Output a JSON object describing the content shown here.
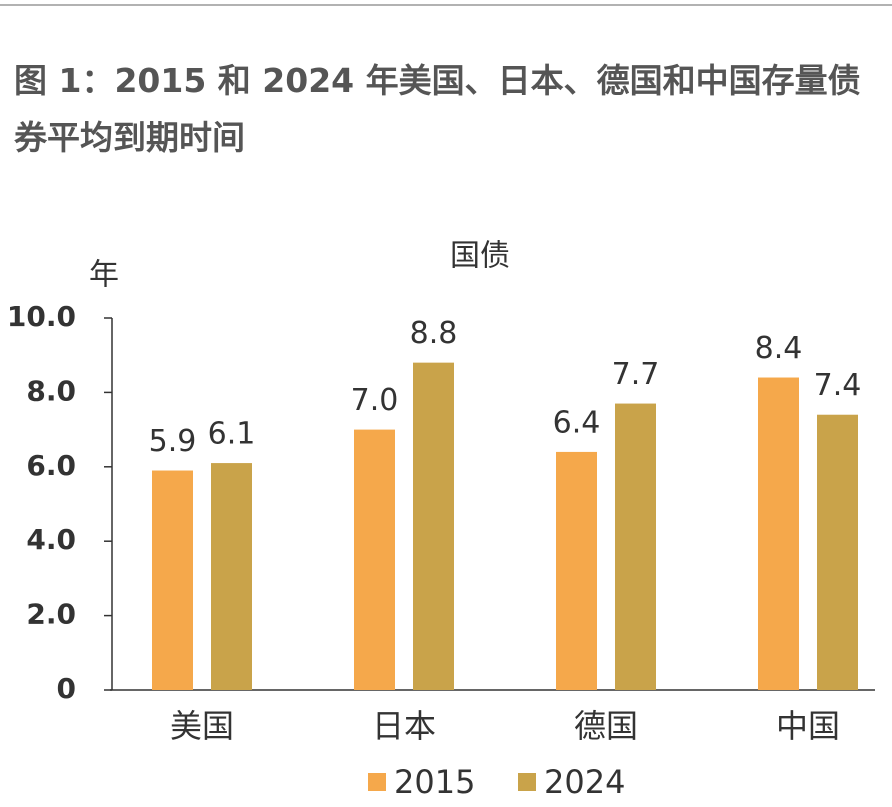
{
  "chart_data": {
    "type": "bar",
    "title": "图 1：2015 和 2024 年美国、日本、德国和中国存量债券平均到期时间",
    "subtitle": "国债",
    "y_label": "年",
    "categories": [
      "美国",
      "日本",
      "德国",
      "中国"
    ],
    "series": [
      {
        "name": "2015",
        "color": "#f5a84b",
        "values": [
          5.9,
          7.0,
          6.4,
          8.4
        ],
        "value_labels": [
          "5.9",
          "7.0",
          "6.4",
          "8.4"
        ]
      },
      {
        "name": "2024",
        "color": "#c9a34a",
        "values": [
          6.1,
          8.8,
          7.7,
          7.4
        ],
        "value_labels": [
          "6.1",
          "8.8",
          "7.7",
          "7.4"
        ]
      }
    ],
    "ylim": [
      0,
      10
    ],
    "yticks": [
      0,
      {
        "value": 2,
        "label": "2.0"
      },
      {
        "value": 4,
        "label": "4.0"
      },
      {
        "value": 6,
        "label": "6.0"
      },
      {
        "value": 8,
        "label": "8.0"
      },
      {
        "value": 10,
        "label": "10.0"
      }
    ],
    "legend": "bottom"
  }
}
